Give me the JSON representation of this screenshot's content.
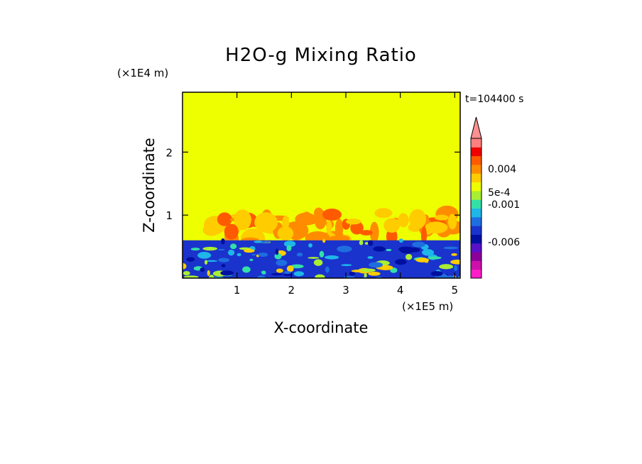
{
  "chart_data": {
    "type": "heatmap",
    "title": "H2O-g Mixing Ratio",
    "xlabel": "X-coordinate",
    "ylabel": "Z-coordinate",
    "x_units": "(×1E5 m)",
    "y_units": "(×1E4 m)",
    "time_label": "t=104400 s",
    "xlim": [
      0,
      5.1
    ],
    "ylim": [
      0,
      2.95
    ],
    "x_ticks": [
      1,
      2,
      3,
      4,
      5
    ],
    "x_tick_labels": [
      "1",
      "2",
      "3",
      "4",
      "5"
    ],
    "y_ticks": [
      1,
      2
    ],
    "y_tick_labels": [
      "1",
      "2"
    ],
    "background_value": 0,
    "background_color": "#eeff00",
    "lower_layer": {
      "z_top": 0.6,
      "color": "#1a33cc",
      "description_value": -0.003
    },
    "convective_region": {
      "z_range": [
        0.6,
        1.05
      ],
      "x_range": [
        0.5,
        5.0
      ]
    },
    "colorbar": {
      "levels": [
        {
          "color": "#ff1dc8"
        },
        {
          "color": "#cc11aa"
        },
        {
          "color": "#8a0099"
        },
        {
          "color": "#5a10c8"
        },
        {
          "color": "#000fa0"
        },
        {
          "color": "#1a33cc"
        },
        {
          "color": "#1f6ee0"
        },
        {
          "color": "#1fb6e8"
        },
        {
          "color": "#33e0a8"
        },
        {
          "color": "#aaee33"
        },
        {
          "color": "#eeff00"
        },
        {
          "color": "#ffcc00"
        },
        {
          "color": "#ff8c00"
        },
        {
          "color": "#ff5a00"
        },
        {
          "color": "#ee0000"
        },
        {
          "color": "#ff8080"
        }
      ],
      "arrow_color": "#ff9090",
      "labels": [
        "0.004",
        "5e-4",
        "-0.001",
        "-0.006"
      ]
    }
  }
}
